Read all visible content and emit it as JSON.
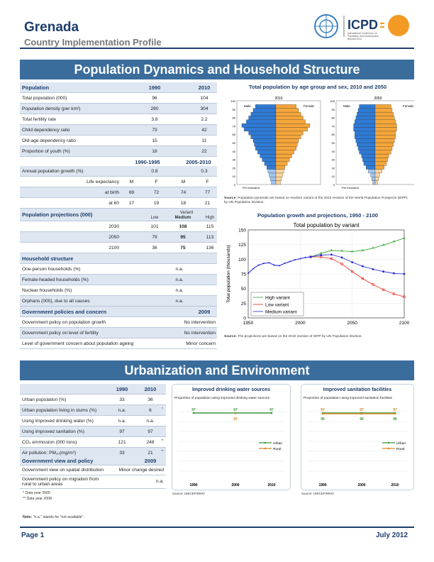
{
  "header": {
    "country": "Grenada",
    "subtitle": "Country Implementation Profile",
    "logo_text": "ICPD",
    "logo_sub": "International Conference on Population and Development Beyond 2014"
  },
  "section1": {
    "title": "Population Dynamics and Household Structure"
  },
  "population": {
    "header": [
      "Population",
      "1990",
      "2010"
    ],
    "rows": [
      {
        "label": "Total population (000)",
        "v1": "96",
        "v2": "104"
      },
      {
        "label": "Population density (per km²)",
        "v1": "280",
        "v2": "304"
      },
      {
        "label": "Total fertility rate",
        "v1": "3.8",
        "v2": "2.2"
      },
      {
        "label": "Child dependency ratio",
        "v1": "73",
        "v2": "42"
      },
      {
        "label": "Old-age dependency ratio",
        "v1": "15",
        "v2": "11"
      },
      {
        "label": "Proportion of youth (%)",
        "v1": "18",
        "v2": "22"
      }
    ],
    "period_header": [
      "1990-1995",
      "2005-2010"
    ],
    "growth": {
      "label": "Annual population growth (%)",
      "v1": "0.8",
      "v2": "0.3"
    },
    "life": {
      "label": "Life expectancy",
      "cols": [
        "M",
        "F",
        "M",
        "F"
      ]
    },
    "birth": {
      "label": "at birth",
      "vals": [
        "69",
        "72",
        "74",
        "77"
      ]
    },
    "age60": {
      "label": "at 60",
      "vals": [
        "17",
        "19",
        "18",
        "21"
      ]
    }
  },
  "projections": {
    "title": "Population projections (000)",
    "variant": "Variant",
    "cols": [
      "Low",
      "Medium",
      "High"
    ],
    "rows": [
      {
        "year": "2030",
        "low": "101",
        "med": "108",
        "high": "115"
      },
      {
        "year": "2050",
        "low": "79",
        "med": "95",
        "high": "113"
      },
      {
        "year": "2100",
        "low": "36",
        "med": "75",
        "high": "136"
      }
    ]
  },
  "household": {
    "title": "Household structure",
    "rows": [
      {
        "label": "One-person households (%)",
        "value": "n.a."
      },
      {
        "label": "Female-headed households (%)",
        "value": "n.a."
      },
      {
        "label": "Nuclear households (%)",
        "value": "n.a."
      },
      {
        "label": "Orphans (000), due to all causes",
        "value": "n.a."
      }
    ]
  },
  "policies": {
    "title": "Government policies and concern",
    "year": "2009",
    "rows": [
      {
        "label": "Government policy on population growth",
        "value": "No intervention"
      },
      {
        "label": "Government policy on level of fertility",
        "value": "No intervention"
      },
      {
        "label": "Level of government concern about population ageing",
        "value": "Minor concern"
      }
    ]
  },
  "pyramid": {
    "title": "Total population by age group and sex, 2010 and 2050",
    "panels": [
      {
        "year": "2010"
      },
      {
        "year": "2050"
      }
    ],
    "male": "Male",
    "female": "Female",
    "yticks": [
      "100",
      "90",
      "80",
      "70",
      "60",
      "50",
      "40",
      "30",
      "20",
      "10",
      "0"
    ],
    "xlabel": "Per thousand",
    "source_label": "Source:",
    "source": "Population pyramids are based on medium variant of the 2010 revision of the World Population Prospects (WPP) by UN Population Division.",
    "colors": {
      "male": "#2e7bd6",
      "female": "#f5a63a",
      "male_light": "#9fc4ef",
      "female_light": "#fbd49c"
    }
  },
  "growth_chart": {
    "title": "Population growth and projections, 1950 - 2100",
    "source_label": "Source:",
    "source": "The projections are based on the 2010 revision of WPP by UN Population Division."
  },
  "chart_data": {
    "type": "line",
    "title": "Total population by variant",
    "xlabel": "",
    "ylabel": "Total population (thousands)",
    "xlim": [
      1950,
      2100
    ],
    "ylim": [
      0,
      150
    ],
    "xticks": [
      "1950",
      "2000",
      "2050",
      "2100"
    ],
    "yticks": [
      "0",
      "25",
      "50",
      "75",
      "100",
      "125",
      "150"
    ],
    "legend": "bottom-left",
    "grid": true,
    "historical": {
      "x": [
        1950,
        1955,
        1960,
        1965,
        1970,
        1975,
        1980,
        1985,
        1990,
        1995,
        2000,
        2005,
        2010
      ],
      "y": [
        76,
        84,
        90,
        93,
        94,
        90,
        89,
        93,
        96,
        99,
        101,
        103,
        104
      ]
    },
    "series": [
      {
        "name": "High variant",
        "color": "#2aa02a",
        "x": [
          2010,
          2020,
          2030,
          2040,
          2050,
          2060,
          2070,
          2080,
          2090,
          2100
        ],
        "y": [
          104,
          110,
          115,
          114,
          113,
          115,
          119,
          124,
          130,
          136
        ]
      },
      {
        "name": "Low variant",
        "color": "#e8271f",
        "x": [
          2010,
          2020,
          2030,
          2040,
          2050,
          2060,
          2070,
          2080,
          2090,
          2100
        ],
        "y": [
          104,
          104,
          101,
          92,
          79,
          67,
          57,
          48,
          41,
          36
        ]
      },
      {
        "name": "Medium variant",
        "color": "#1f22d4",
        "x": [
          2010,
          2020,
          2030,
          2040,
          2050,
          2060,
          2070,
          2080,
          2090,
          2100
        ],
        "y": [
          104,
          107,
          108,
          103,
          95,
          88,
          83,
          79,
          76,
          75
        ]
      }
    ]
  },
  "section2": {
    "title": "Urbanization and Environment"
  },
  "urban": {
    "header": [
      "1990",
      "2010"
    ],
    "rows": [
      {
        "label": "Urban population (%)",
        "v1": "33",
        "v2": "36",
        "note": ""
      },
      {
        "label": "Urban population living in slums (%)",
        "v1": "n.a.",
        "v2": "6",
        "note": "*"
      },
      {
        "label": "Using improved drinking water (%)",
        "v1": "n.a.",
        "v2": "n.a.",
        "note": ""
      },
      {
        "label": "Using improved sanitation (%)",
        "v1": "97",
        "v2": "97",
        "note": ""
      },
      {
        "label": "CO₂ emmission (000 tons)",
        "v1": "121",
        "v2": "246",
        "note": "**"
      },
      {
        "label": "Air pollution: PM₁₀(mg/m³)",
        "v1": "33",
        "v2": "21",
        "note": "**"
      }
    ],
    "view_title": "Government view and policy",
    "view_year": "2009",
    "view_rows": [
      {
        "label": "Government view on spatial distribution",
        "value": "Minor change desired"
      },
      {
        "label": "Government policy on migration from rural to urban areas",
        "value": "n.a."
      }
    ],
    "notes": [
      "* Data year 2005",
      "** Data year 2008"
    ]
  },
  "water": {
    "title": "Improved drinking water sources",
    "subtitle": "Proportion of population using improved drinking water sources",
    "urban_vals": [
      "97",
      "97",
      "97"
    ],
    "rural_vals": [
      "93"
    ],
    "years": [
      "1990",
      "2000",
      "2010"
    ],
    "legend": [
      "Urban",
      "Rural"
    ],
    "source": "Source: UNICEF/WHO"
  },
  "sanitation": {
    "title": "Improved sanitation facilities",
    "subtitle": "Proportion of population using improved sanitation facilities",
    "urban_vals": [
      "97",
      "97",
      "97"
    ],
    "rural_vals": [
      "96",
      "96",
      "96"
    ],
    "years": [
      "1990",
      "2000",
      "2010"
    ],
    "legend": [
      "Urban",
      "Rural"
    ],
    "source": "Source: UNICEF/WHO"
  },
  "note": {
    "label": "Note:",
    "text": "\"n.a.\" stands for \"not available\"."
  },
  "footer": {
    "page": "Page 1",
    "date": "July 2012"
  },
  "colors": {
    "brand": "#1d3d6b",
    "banner": "#3a6d9c",
    "shade": "#dde6f1",
    "urban": "#3a9a3a",
    "rural": "#d8862a"
  }
}
